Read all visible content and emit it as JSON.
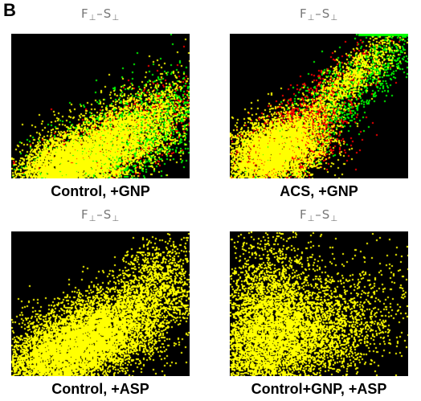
{
  "figure": {
    "panel_letter": "B",
    "plots": [
      {
        "top_label_main_1": "F",
        "top_label_sub_1": "⊥",
        "top_label_sep": "–",
        "top_label_main_2": "S",
        "top_label_sub_2": "⊥",
        "caption": "Control, +GNP",
        "palette": [
          "#ffff00",
          "#00ff00",
          "#ff0000"
        ]
      },
      {
        "top_label_main_1": "F",
        "top_label_sub_1": "⊥",
        "top_label_sep": "–",
        "top_label_main_2": "S",
        "top_label_sub_2": "⊥",
        "caption": "ACS, +GNP",
        "palette": [
          "#ffff00",
          "#00ff00",
          "#ff0000"
        ]
      },
      {
        "top_label_main_1": "F",
        "top_label_sub_1": "⊥",
        "top_label_sep": "–",
        "top_label_main_2": "S",
        "top_label_sub_2": "⊥",
        "caption": "Control, +ASP",
        "palette": [
          "#ffff00"
        ]
      },
      {
        "top_label_main_1": "F",
        "top_label_sub_1": "⊥",
        "top_label_sep": "–",
        "top_label_main_2": "S",
        "top_label_sub_2": "⊥",
        "caption": "Control+GNP, +ASP",
        "palette": [
          "#ffff00"
        ]
      }
    ]
  }
}
